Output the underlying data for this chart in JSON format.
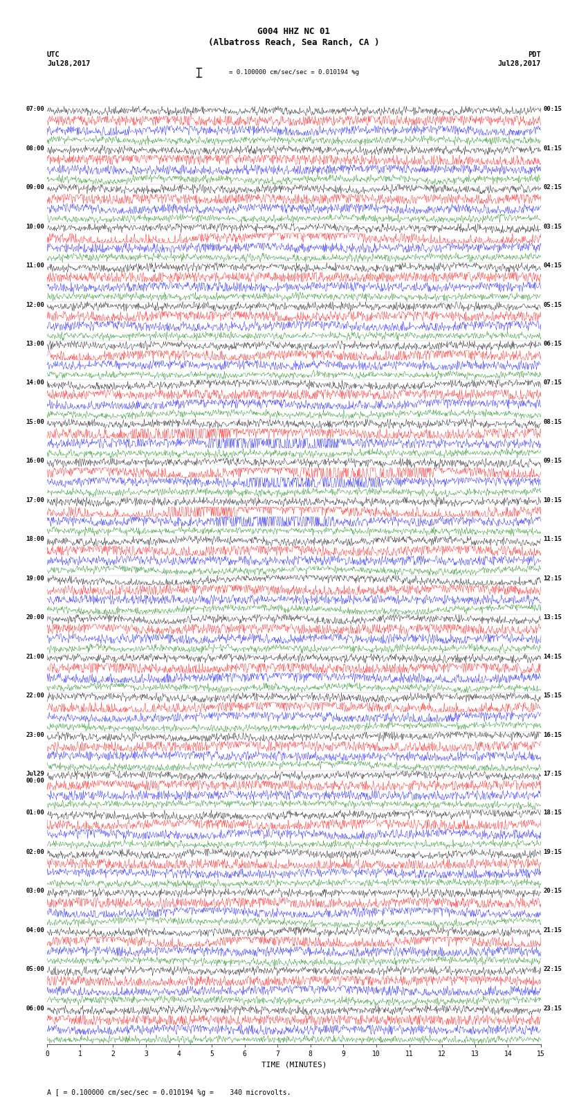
{
  "title_line1": "G004 HHZ NC 01",
  "title_line2": "(Albatross Reach, Sea Ranch, CA )",
  "scale_text": "= 0.100000 cm/sec/sec = 0.010194 %g",
  "footer_text": "A [ = 0.100000 cm/sec/sec = 0.010194 %g =    340 microvolts.",
  "utc_label": "UTC",
  "pdt_label": "PDT",
  "date_left": "Jul28,2017",
  "date_right": "Jul28,2017",
  "xlabel": "TIME (MINUTES)",
  "time_labels_left": [
    "07:00",
    "08:00",
    "09:00",
    "10:00",
    "11:00",
    "12:00",
    "13:00",
    "14:00",
    "15:00",
    "16:00",
    "17:00",
    "18:00",
    "19:00",
    "20:00",
    "21:00",
    "22:00",
    "23:00",
    "Jul29\n00:00",
    "01:00",
    "02:00",
    "03:00",
    "04:00",
    "05:00",
    "06:00"
  ],
  "time_labels_right": [
    "00:15",
    "01:15",
    "02:15",
    "03:15",
    "04:15",
    "05:15",
    "06:15",
    "07:15",
    "08:15",
    "09:15",
    "10:15",
    "11:15",
    "12:15",
    "13:15",
    "14:15",
    "15:15",
    "16:15",
    "17:15",
    "18:15",
    "19:15",
    "20:15",
    "21:15",
    "22:15",
    "23:15"
  ],
  "n_rows": 24,
  "n_traces": 4,
  "trace_colors": [
    "black",
    "red",
    "blue",
    "green"
  ],
  "bg_color": "white",
  "plot_bg": "white",
  "xmin": 0,
  "xmax": 15,
  "xticks": [
    0,
    1,
    2,
    3,
    4,
    5,
    6,
    7,
    8,
    9,
    10,
    11,
    12,
    13,
    14,
    15
  ],
  "noise_amplitude": [
    0.35,
    0.55,
    0.45,
    0.3
  ],
  "noise_seed": 42,
  "figwidth": 8.5,
  "figheight": 16.13,
  "dpi": 100
}
